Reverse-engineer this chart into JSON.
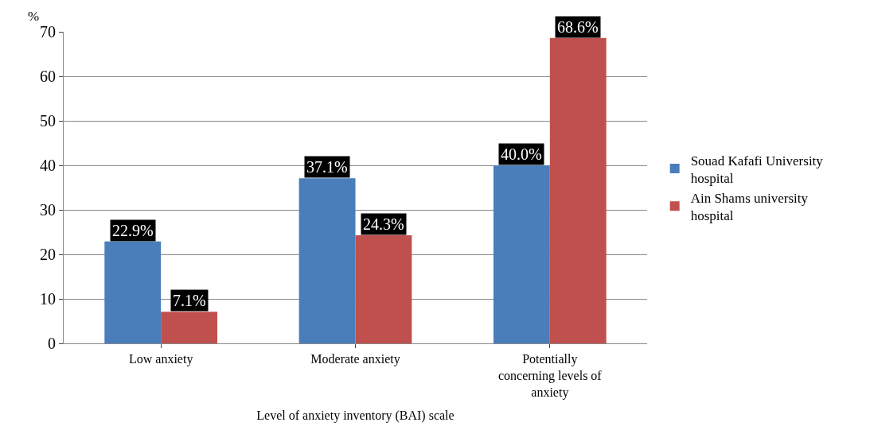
{
  "chart_data": {
    "type": "bar",
    "ylabel": "%",
    "xlabel": "Level of anxiety inventory (BAI) scale",
    "categories": [
      "Low anxiety",
      "Moderate anxiety",
      "Potentially concerning levels of anxiety"
    ],
    "series": [
      {
        "name": "Souad Kafafi University hospital",
        "color": "#4a7ebb",
        "values": [
          22.9,
          37.1,
          40.0
        ],
        "value_labels": [
          "22.9%",
          "37.1%",
          "40.0%"
        ]
      },
      {
        "name": "Ain Shams university hospital",
        "color": "#c0504d",
        "values": [
          7.1,
          24.3,
          68.6
        ],
        "value_labels": [
          "7.1%",
          "24.3%",
          "68.6%"
        ]
      }
    ],
    "ylim": [
      0,
      70
    ],
    "yticks": [
      0,
      10,
      20,
      30,
      40,
      50,
      60,
      70
    ],
    "grid": "y",
    "legend": "right"
  }
}
